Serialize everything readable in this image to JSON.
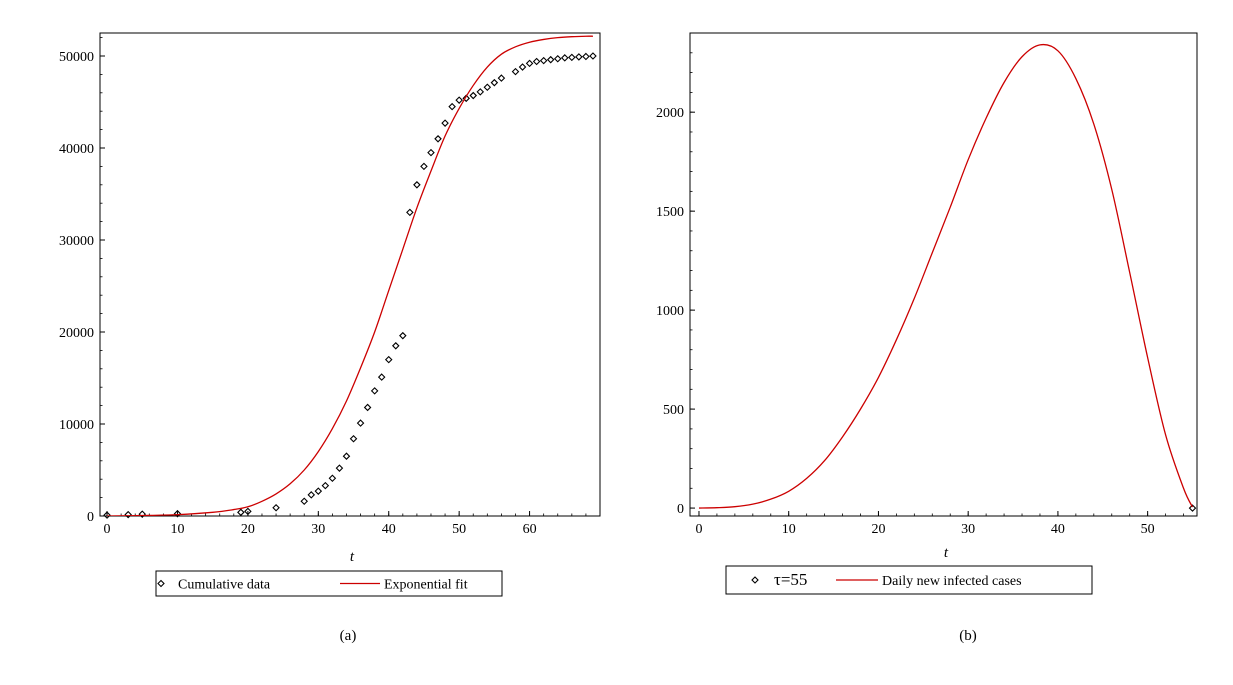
{
  "panels": [
    {
      "panel_label": "(a)",
      "chart_data": {
        "type": "scatter",
        "title": "",
        "xlabel": "t",
        "ylabel": "",
        "xlim": [
          -1,
          70
        ],
        "ylim": [
          0,
          52500
        ],
        "xticks": [
          0,
          10,
          20,
          30,
          40,
          50,
          60
        ],
        "xtick_labels": [
          "0",
          "10",
          "20",
          "30",
          "40",
          "50",
          "60"
        ],
        "yticks": [
          0,
          10000,
          20000,
          30000,
          40000,
          50000
        ],
        "ytick_labels": [
          "0",
          "10000",
          "20000",
          "30000",
          "40000",
          "50000"
        ],
        "grid": false,
        "legend": "below",
        "series": [
          {
            "name": "Cumulative data",
            "kind": "markers",
            "marker": "diamond",
            "color": "#000000",
            "x": [
              0,
              3,
              5,
              10,
              19,
              20,
              24,
              28,
              29,
              30,
              31,
              32,
              33,
              34,
              35,
              36,
              37,
              38,
              39,
              40,
              41,
              42,
              43,
              44,
              45,
              46,
              47,
              48,
              49,
              50,
              51,
              52,
              53,
              54,
              55,
              56,
              58,
              59,
              60,
              61,
              62,
              63,
              64,
              65,
              66,
              67,
              68,
              69
            ],
            "y": [
              100,
              150,
              200,
              250,
              400,
              500,
              900,
              1600,
              2300,
              2700,
              3300,
              4100,
              5200,
              6500,
              8400,
              10100,
              11800,
              13600,
              15100,
              17000,
              18500,
              19600,
              33000,
              36000,
              38000,
              39500,
              41000,
              42700,
              44500,
              45200,
              45400,
              45700,
              46100,
              46600,
              47100,
              47600,
              48300,
              48800,
              49200,
              49400,
              49500,
              49600,
              49700,
              49800,
              49850,
              49900,
              49950,
              50000
            ]
          },
          {
            "name": "Exponential fit",
            "kind": "line",
            "color": "#cc0000",
            "x": [
              0,
              5,
              10,
              15,
              18,
              20,
              22,
              24,
              26,
              28,
              30,
              32,
              34,
              36,
              38,
              40,
              42,
              44,
              46,
              48,
              50,
              52,
              54,
              56,
              58,
              60,
              62,
              64,
              66,
              68,
              69
            ],
            "y": [
              0,
              50,
              150,
              400,
              700,
              1000,
              1600,
              2400,
              3500,
              5000,
              7000,
              9500,
              12500,
              16100,
              20000,
              24500,
              29000,
              33500,
              37500,
              41300,
              44300,
              46800,
              48800,
              50200,
              51000,
              51500,
              51800,
              52000,
              52100,
              52150,
              52150
            ]
          }
        ]
      }
    },
    {
      "panel_label": "(b)",
      "chart_data": {
        "type": "line",
        "title": "",
        "xlabel": "t",
        "ylabel": "",
        "xlim": [
          -1,
          55.5
        ],
        "ylim": [
          -40,
          2400
        ],
        "xticks": [
          0,
          10,
          20,
          30,
          40,
          50
        ],
        "xtick_labels": [
          "0",
          "10",
          "20",
          "30",
          "40",
          "50"
        ],
        "yticks": [
          0,
          500,
          1000,
          1500,
          2000
        ],
        "ytick_labels": [
          "0",
          "500",
          "1000",
          "1500",
          "2000"
        ],
        "grid": false,
        "legend": "below",
        "series": [
          {
            "name": "τ=55",
            "kind": "markers",
            "marker": "diamond",
            "color": "#000000",
            "x": [
              55
            ],
            "y": [
              0
            ]
          },
          {
            "name": "Daily new infected cases",
            "kind": "line",
            "color": "#cc0000",
            "x": [
              0,
              2,
              4,
              6,
              8,
              10,
              12,
              14,
              16,
              18,
              20,
              22,
              24,
              26,
              28,
              30,
              32,
              34,
              36,
              38,
              40,
              42,
              44,
              46,
              48,
              50,
              52,
              54,
              55
            ],
            "y": [
              0,
              2,
              7,
              20,
              45,
              85,
              150,
              240,
              360,
              500,
              660,
              850,
              1060,
              1290,
              1520,
              1760,
              1970,
              2150,
              2280,
              2340,
              2310,
              2170,
              1940,
              1610,
              1190,
              760,
              370,
              100,
              5
            ]
          }
        ]
      }
    }
  ]
}
